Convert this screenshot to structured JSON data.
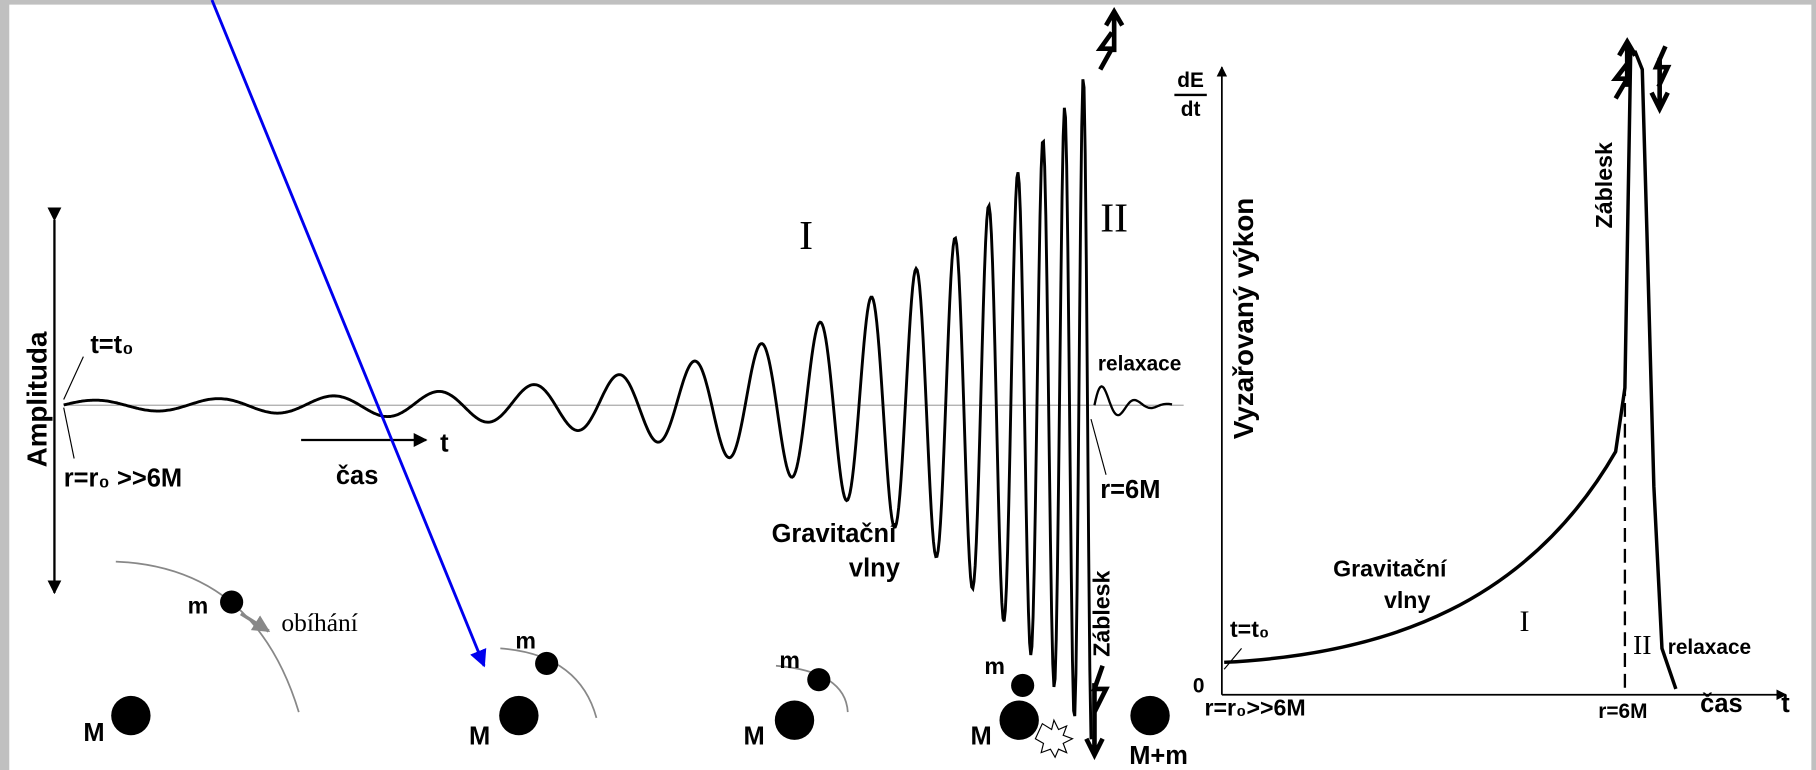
{
  "left_panel": {
    "y_axis_label": "Amplituda",
    "start_time": "t=t₀",
    "start_radius": "r=r₀ >>6M",
    "time_label": "čas",
    "time_symbol": "t",
    "phase_1": "I",
    "phase_2": "II",
    "relaxation": "relaxace",
    "end_radius": "r=6M",
    "wave_label": [
      "Gravitační",
      "vlny"
    ],
    "flash": "Záblesk",
    "orbit_label": "obíhání",
    "bodies": {
      "small": "m",
      "large": "M",
      "merged": "M+m"
    }
  },
  "right_panel": {
    "y_axis_label": [
      "dE",
      "dt"
    ],
    "y_axis_title": "Vyzařovaný výkon",
    "flash": "Záblesk",
    "wave_label": [
      "Gravitační",
      "vlny"
    ],
    "phase_1": "I",
    "phase_2": "II",
    "relaxation": "relaxace",
    "start_time": "t=t₀",
    "origin": "0",
    "start_radius": "r=r₀>>6M",
    "end_radius": "r=6M",
    "time_label": "čas",
    "time_symbol": "t"
  }
}
